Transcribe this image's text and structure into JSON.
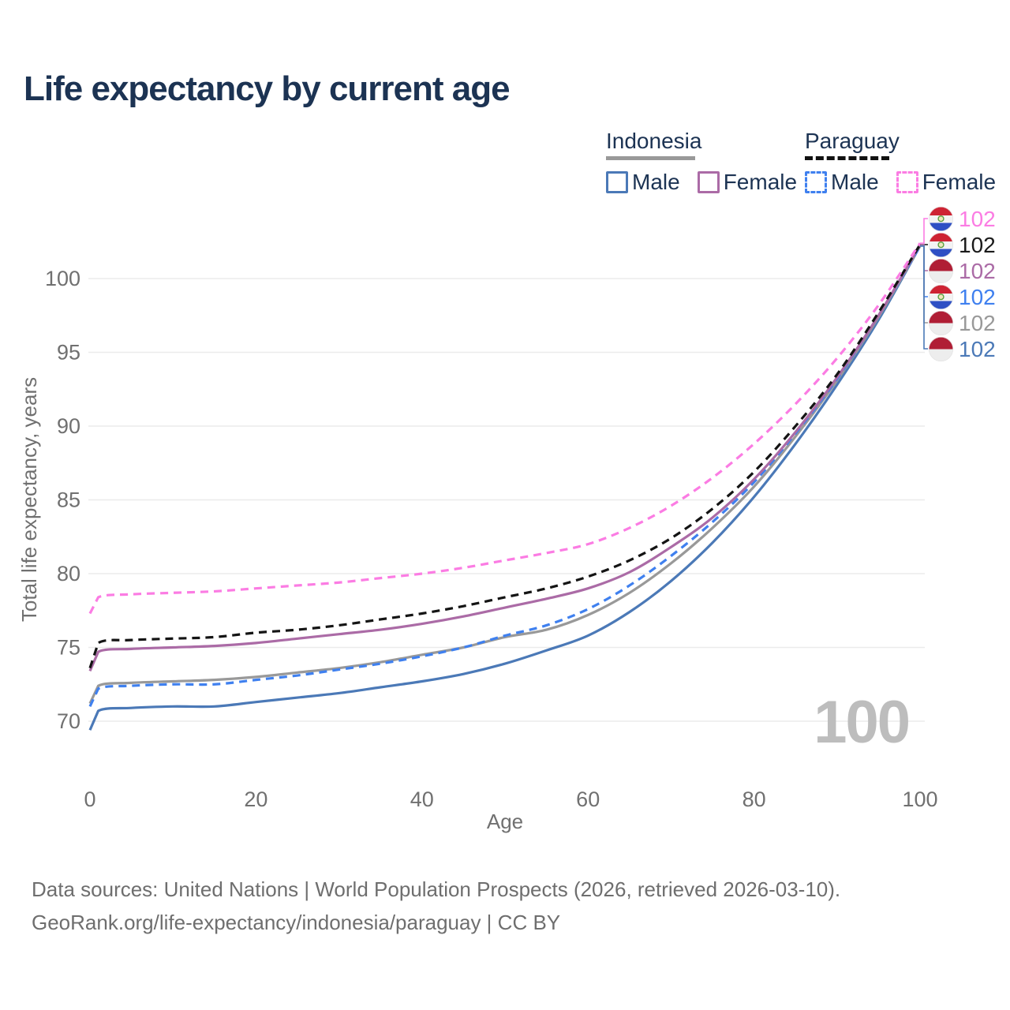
{
  "title": {
    "text": "Life expectancy by current age",
    "color": "#1c3353"
  },
  "palette": {
    "title": "#1c3353",
    "axis_text": "#707070",
    "grid": "#ebebeb",
    "watermark": "#bdbdbd",
    "footer_text": "#6e6e6e",
    "legend_text": "#1c3353"
  },
  "legend": {
    "groups": [
      {
        "name": "Indonesia",
        "underline_style": "solid",
        "underline_color": "#999999",
        "items": [
          {
            "label": "Male",
            "color": "#4b79b7",
            "dashed": false
          },
          {
            "label": "Female",
            "color": "#ab6ba6",
            "dashed": false
          }
        ]
      },
      {
        "name": "Paraguay",
        "underline_style": "dashed",
        "underline_color": "#111111",
        "items": [
          {
            "label": "Male",
            "color": "#3f80ef",
            "dashed": true
          },
          {
            "label": "Female",
            "color": "#fb7ce3",
            "dashed": true
          }
        ]
      }
    ]
  },
  "watermark": "100",
  "chart_data": {
    "type": "line",
    "title": "Life expectancy by current age",
    "xlabel": "Age",
    "ylabel": "Total life expectancy, years",
    "xlim": [
      0,
      100
    ],
    "ylim": [
      68.5,
      103.5
    ],
    "x_ticks": [
      0,
      20,
      40,
      60,
      80,
      100
    ],
    "y_ticks": [
      70,
      75,
      80,
      85,
      90,
      95,
      100
    ],
    "grid": "horizontal-only",
    "legend_position": "top-right",
    "x": [
      0,
      1,
      5,
      10,
      15,
      20,
      25,
      30,
      35,
      40,
      45,
      50,
      55,
      60,
      65,
      70,
      75,
      80,
      85,
      90,
      95,
      100
    ],
    "series": [
      {
        "name": "Paraguay Female",
        "country": "Paraguay",
        "sex": "Female",
        "color": "#fb7ce3",
        "dashed": true,
        "flag": "paraguay",
        "row": 0,
        "end_label": "102",
        "values": [
          77.3,
          78.4,
          78.6,
          78.7,
          78.8,
          79.0,
          79.2,
          79.4,
          79.7,
          80.0,
          80.4,
          80.9,
          81.4,
          82.0,
          83.1,
          84.6,
          86.5,
          88.8,
          91.5,
          94.6,
          98.2,
          102.4
        ]
      },
      {
        "name": "Paraguay",
        "country": "Paraguay",
        "sex": "Both",
        "color": "#141414",
        "dashed": true,
        "flag": "paraguay",
        "row": 1,
        "end_label": "102",
        "values": [
          73.6,
          75.3,
          75.5,
          75.6,
          75.7,
          76.0,
          76.2,
          76.5,
          76.9,
          77.3,
          77.8,
          78.4,
          79.0,
          79.8,
          80.9,
          82.4,
          84.4,
          86.9,
          90.0,
          93.5,
          97.7,
          102.3
        ]
      },
      {
        "name": "Indonesia Female",
        "country": "Indonesia",
        "sex": "Female",
        "color": "#ab6ba6",
        "dashed": false,
        "flag": "indonesia",
        "row": 2,
        "end_label": "102",
        "values": [
          73.4,
          74.7,
          74.9,
          75.0,
          75.1,
          75.3,
          75.6,
          75.9,
          76.2,
          76.6,
          77.1,
          77.7,
          78.3,
          79.0,
          80.1,
          81.8,
          83.8,
          86.4,
          89.6,
          93.3,
          97.5,
          102.3
        ]
      },
      {
        "name": "Paraguay Male",
        "country": "Paraguay",
        "sex": "Male",
        "color": "#3f80ef",
        "dashed": true,
        "flag": "paraguay",
        "row": 3,
        "end_label": "102",
        "values": [
          71.0,
          72.2,
          72.4,
          72.5,
          72.5,
          72.8,
          73.1,
          73.5,
          73.9,
          74.4,
          75.0,
          75.8,
          76.5,
          77.6,
          79.2,
          81.2,
          83.5,
          86.2,
          89.5,
          93.2,
          97.5,
          102.2
        ]
      },
      {
        "name": "Indonesia",
        "country": "Indonesia",
        "sex": "Both",
        "color": "#999999",
        "dashed": false,
        "flag": "indonesia",
        "row": 4,
        "end_label": "102",
        "values": [
          71.2,
          72.4,
          72.6,
          72.7,
          72.8,
          73.0,
          73.3,
          73.6,
          74.0,
          74.5,
          75.0,
          75.7,
          76.2,
          77.2,
          78.7,
          80.7,
          83.1,
          85.9,
          89.3,
          93.1,
          97.4,
          102.2
        ]
      },
      {
        "name": "Indonesia Male",
        "country": "Indonesia",
        "sex": "Male",
        "color": "#4b79b7",
        "dashed": false,
        "flag": "indonesia",
        "row": 5,
        "end_label": "102",
        "values": [
          69.4,
          70.7,
          70.9,
          71.0,
          71.0,
          71.3,
          71.6,
          71.9,
          72.3,
          72.7,
          73.2,
          73.9,
          74.8,
          75.8,
          77.4,
          79.5,
          82.1,
          85.2,
          88.8,
          92.8,
          97.2,
          102.2
        ]
      }
    ]
  },
  "footer": {
    "line1": "Data sources: United Nations | World Population Prospects (2026, retrieved 2026-03-10).",
    "line2": "GeoRank.org/life-expectancy/indonesia/paraguay | CC BY"
  }
}
